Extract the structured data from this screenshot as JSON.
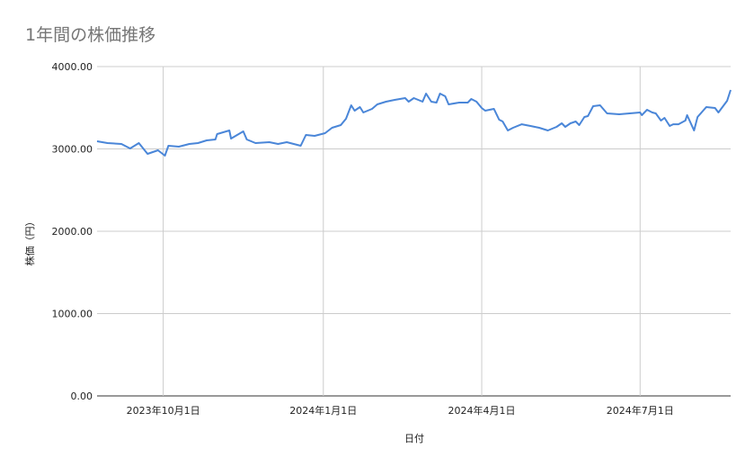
{
  "chart_data": {
    "type": "line",
    "title": "1年間の株価推移",
    "xlabel": "日付",
    "ylabel": "株価（円）",
    "ylim": [
      0,
      4000
    ],
    "yticks": [
      0,
      1000,
      2000,
      3000,
      4000
    ],
    "ytick_labels": [
      "0.00",
      "1000.00",
      "2000.00",
      "3000.00",
      "4000.00"
    ],
    "xlim": [
      "2023-08-24",
      "2024-08-22"
    ],
    "xticks": [
      "2023-10-01",
      "2024-01-01",
      "2024-04-01",
      "2024-07-01"
    ],
    "xtick_labels": [
      "2023年10月1日",
      "2024年1月1日",
      "2024年4月1日",
      "2024年7月1日"
    ],
    "grid": true,
    "legend": "none",
    "colors": {
      "line": "#4a86d8",
      "grid": "#cccccc",
      "title": "#757575"
    },
    "series": [
      {
        "x": [
          "2023-08-24",
          "2023-08-30",
          "2023-09-07",
          "2023-09-12",
          "2023-09-17",
          "2023-09-22",
          "2023-09-28",
          "2023-10-02",
          "2023-10-04",
          "2023-10-10",
          "2023-10-16",
          "2023-10-21",
          "2023-10-26",
          "2023-10-31",
          "2023-11-01",
          "2023-11-08",
          "2023-11-09",
          "2023-11-16",
          "2023-11-18",
          "2023-11-23",
          "2023-12-01",
          "2023-12-06",
          "2023-12-11",
          "2023-12-19",
          "2023-12-22",
          "2023-12-27",
          "2024-01-02",
          "2024-01-06",
          "2024-01-11",
          "2024-01-14",
          "2024-01-17",
          "2024-01-19",
          "2024-01-22",
          "2024-01-24",
          "2024-01-29",
          "2024-02-01",
          "2024-02-06",
          "2024-02-11",
          "2024-02-17",
          "2024-02-19",
          "2024-02-22",
          "2024-02-27",
          "2024-02-29",
          "2024-03-03",
          "2024-03-06",
          "2024-03-08",
          "2024-03-11",
          "2024-03-13",
          "2024-03-19",
          "2024-03-24",
          "2024-03-26",
          "2024-03-29",
          "2024-04-01",
          "2024-04-03",
          "2024-04-08",
          "2024-04-11",
          "2024-04-13",
          "2024-04-16",
          "2024-04-19",
          "2024-04-24",
          "2024-04-29",
          "2024-05-04",
          "2024-05-09",
          "2024-05-14",
          "2024-05-17",
          "2024-05-19",
          "2024-05-22",
          "2024-05-25",
          "2024-05-27",
          "2024-05-30",
          "2024-06-01",
          "2024-06-04",
          "2024-06-08",
          "2024-06-12",
          "2024-06-19",
          "2024-06-25",
          "2024-07-01",
          "2024-07-02",
          "2024-07-05",
          "2024-07-08",
          "2024-07-10",
          "2024-07-13",
          "2024-07-15",
          "2024-07-18",
          "2024-07-20",
          "2024-07-23",
          "2024-07-27",
          "2024-07-28",
          "2024-08-01",
          "2024-08-03",
          "2024-08-08",
          "2024-08-13",
          "2024-08-15",
          "2024-08-20",
          "2024-08-22"
        ],
        "y": [
          3093,
          3071,
          3060,
          3005,
          3071,
          2940,
          2984,
          2918,
          3038,
          3027,
          3060,
          3071,
          3104,
          3115,
          3180,
          3224,
          3126,
          3213,
          3115,
          3071,
          3082,
          3060,
          3082,
          3038,
          3169,
          3158,
          3191,
          3257,
          3290,
          3366,
          3530,
          3465,
          3508,
          3443,
          3486,
          3541,
          3574,
          3596,
          3617,
          3574,
          3617,
          3574,
          3672,
          3574,
          3563,
          3672,
          3639,
          3541,
          3563,
          3563,
          3607,
          3574,
          3497,
          3464,
          3486,
          3355,
          3333,
          3224,
          3257,
          3300,
          3279,
          3257,
          3224,
          3268,
          3311,
          3268,
          3311,
          3333,
          3290,
          3388,
          3399,
          3519,
          3530,
          3432,
          3421,
          3432,
          3443,
          3410,
          3475,
          3443,
          3432,
          3344,
          3377,
          3279,
          3300,
          3300,
          3344,
          3410,
          3224,
          3388,
          3508,
          3497,
          3443,
          3585,
          3716
        ]
      }
    ]
  }
}
